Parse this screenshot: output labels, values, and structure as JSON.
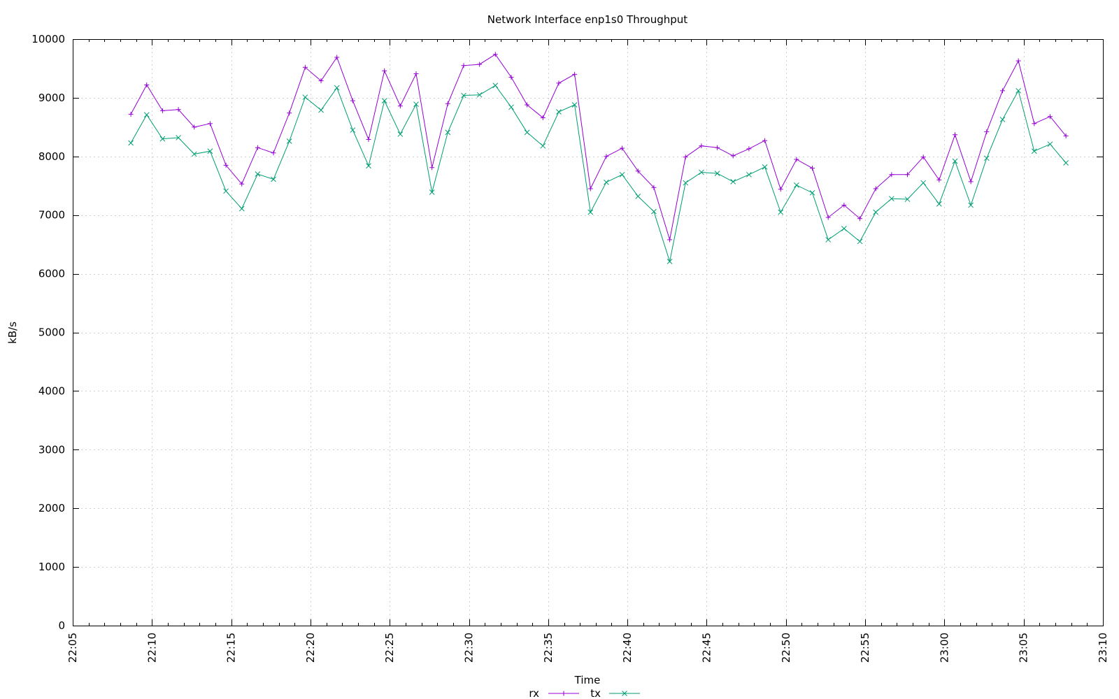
{
  "chart_data": {
    "type": "line",
    "title": "Network Interface enp1s0 Throughput",
    "xlabel": "Time",
    "ylabel": "kB/s",
    "ylim": [
      0,
      10000
    ],
    "xlim": [
      "22:05",
      "23:10"
    ],
    "y_ticks": [
      0,
      1000,
      2000,
      3000,
      4000,
      5000,
      6000,
      7000,
      8000,
      9000,
      10000
    ],
    "x_ticks": [
      "22:05",
      "22:10",
      "22:15",
      "22:20",
      "22:25",
      "22:30",
      "22:35",
      "22:40",
      "22:45",
      "22:50",
      "22:55",
      "23:00",
      "23:05",
      "23:10"
    ],
    "grid": true,
    "legend_position": "bottom-center",
    "x": [
      "22:08:40",
      "22:09:40",
      "22:10:40",
      "22:11:40",
      "22:12:40",
      "22:13:40",
      "22:14:40",
      "22:15:40",
      "22:16:40",
      "22:17:40",
      "22:18:40",
      "22:19:40",
      "22:20:40",
      "22:21:40",
      "22:22:40",
      "22:23:40",
      "22:24:40",
      "22:25:40",
      "22:26:40",
      "22:27:40",
      "22:28:40",
      "22:29:40",
      "22:30:40",
      "22:31:40",
      "22:32:40",
      "22:33:40",
      "22:34:40",
      "22:35:40",
      "22:36:40",
      "22:37:40",
      "22:38:40",
      "22:39:40",
      "22:40:40",
      "22:41:40",
      "22:42:40",
      "22:43:40",
      "22:44:40",
      "22:45:40",
      "22:46:40",
      "22:47:40",
      "22:48:40",
      "22:49:40",
      "22:50:40",
      "22:51:40",
      "22:52:40",
      "22:53:40",
      "22:54:40",
      "22:55:40",
      "22:56:40",
      "22:57:40",
      "22:58:40",
      "22:59:40",
      "23:00:40",
      "23:01:40",
      "23:02:40",
      "23:03:40",
      "23:04:40",
      "23:05:40",
      "23:06:40",
      "23:07:40"
    ],
    "series": [
      {
        "name": "rx",
        "color": "#9400d3",
        "marker": "+",
        "values": [
          8720,
          9220,
          8780,
          8800,
          8500,
          8560,
          7850,
          7530,
          8150,
          8060,
          8740,
          9520,
          9290,
          9690,
          8950,
          8290,
          9460,
          8860,
          9410,
          7810,
          8900,
          9550,
          9570,
          9740,
          9350,
          8880,
          8660,
          9250,
          9400,
          7450,
          8000,
          8140,
          7750,
          7470,
          6580,
          7990,
          8180,
          8150,
          8010,
          8130,
          8270,
          7440,
          7950,
          7800,
          6960,
          7170,
          6940,
          7450,
          7690,
          7690,
          7990,
          7600,
          8370,
          7570,
          8420,
          9120,
          9630,
          8560,
          8680,
          8350
        ]
      },
      {
        "name": "tx",
        "color": "#009e73",
        "marker": "x",
        "values": [
          8230,
          8710,
          8300,
          8320,
          8040,
          8090,
          7410,
          7110,
          7700,
          7610,
          8260,
          9010,
          8790,
          9170,
          8450,
          7840,
          8950,
          8380,
          8890,
          7390,
          8410,
          9040,
          9050,
          9210,
          8840,
          8410,
          8180,
          8760,
          8880,
          7050,
          7560,
          7690,
          7320,
          7060,
          6210,
          7550,
          7730,
          7710,
          7570,
          7690,
          7820,
          7050,
          7510,
          7380,
          6580,
          6770,
          6550,
          7050,
          7280,
          7270,
          7550,
          7190,
          7920,
          7170,
          7970,
          8630,
          9120,
          8090,
          8210,
          7890
        ]
      }
    ]
  }
}
